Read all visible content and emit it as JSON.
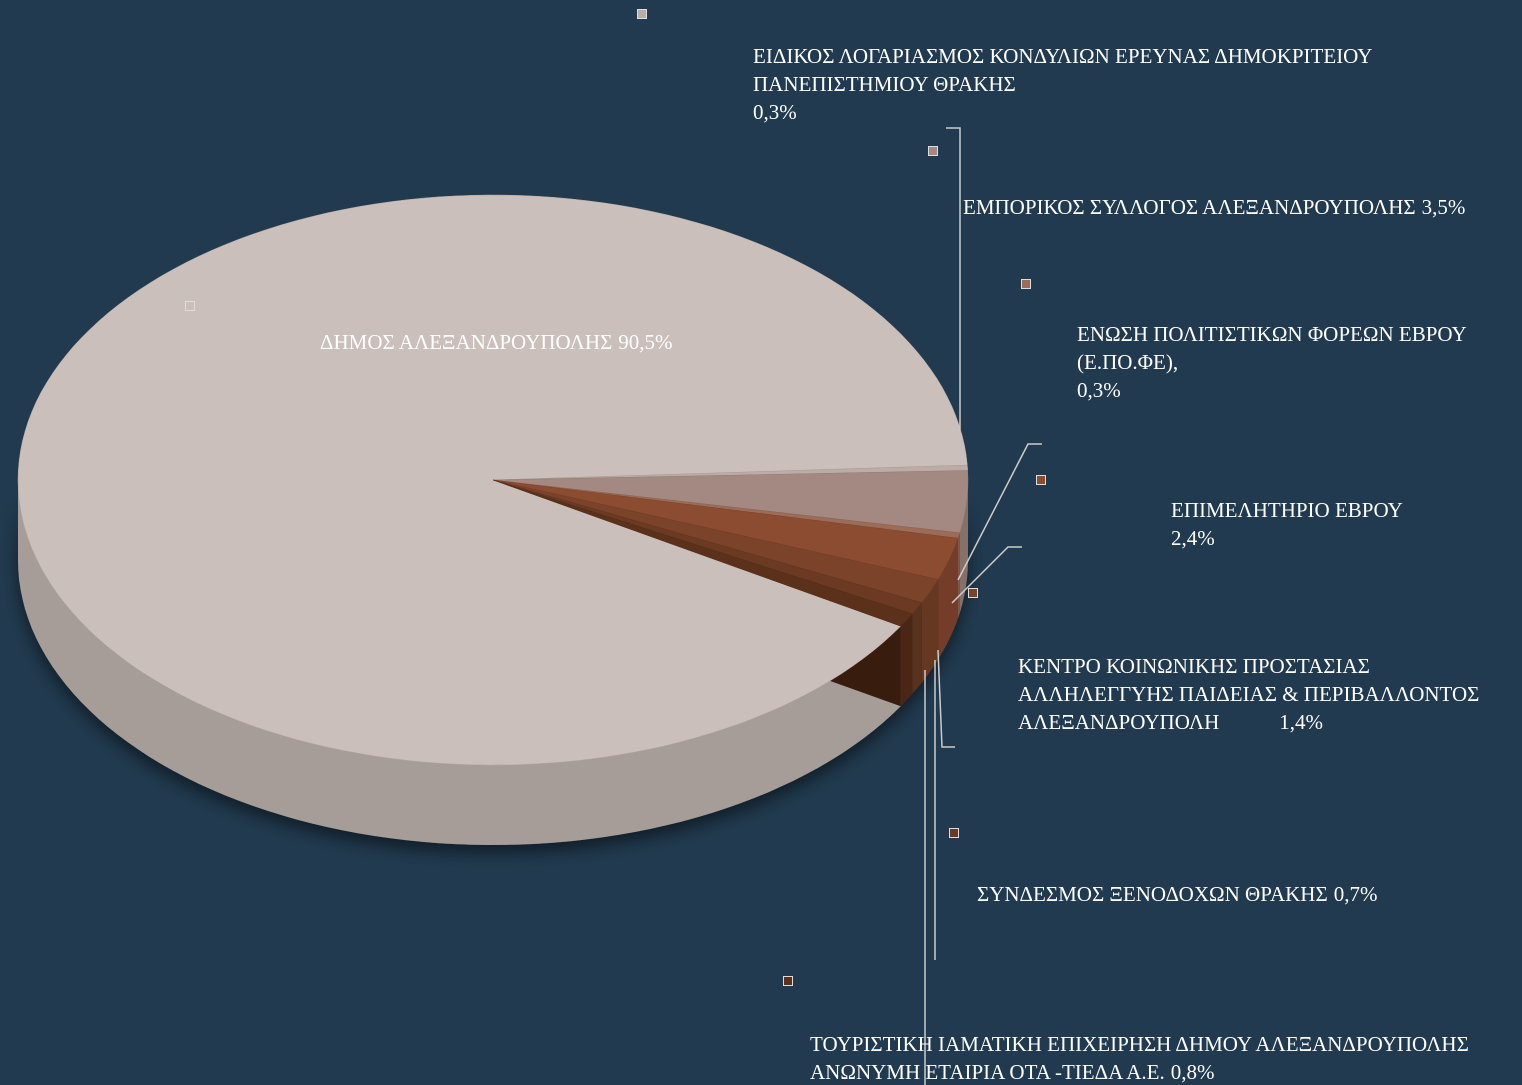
{
  "chart_data": {
    "type": "pie",
    "categories": [
      "ΔΗΜΟΣ ΑΛΕΞΑΝΔΡΟΥΠΟΛΗΣ",
      "ΕΙΔΙΚΟΣ ΛΟΓΑΡΙΑΣΜΟΣ ΚΟΝΔΥΛΙΩΝ ΕΡΕΥΝΑΣ ΔΗΜΟΚΡΙΤΕΙΟΥ ΠΑΝΕΠΙΣΤΗΜΙΟΥ ΘΡΑΚΗΣ",
      "ΕΜΠΟΡΙΚΟΣ ΣΥΛΛΟΓΟΣ ΑΛΕΞΑΝΔΡΟΥΠΟΛΗΣ",
      "ΕΝΩΣΗ ΠΟΛΙΤΙΣΤΙΚΩΝ ΦΟΡΕΩΝ ΕΒΡΟΥ (Ε.ΠΟ.ΦΕ),",
      "ΕΠΙΜΕΛΗΤΗΡΙΟ ΕΒΡΟΥ",
      "ΚΕΝΤΡΟ ΚΟΙΝΩΝΙΚΗΣ ΠΡΟΣΤΑΣΙΑΣ ΑΛΛΗΛΕΓΓΥΗΣ ΠΑΙΔΕΙΑΣ & ΠΕΡΙΒΑΛΛΟΝΤΟΣ ΑΛΕΞΑΝΔΡΟΥΠΟΛΗ",
      "ΣΥΝΔΕΣΜΟΣ ΞΕΝΟΔΟΧΩΝ ΘΡΑΚΗΣ",
      "ΤΟΥΡΙΣΤΙΚΗ ΙΑΜΑΤΙΚΗ ΕΠΙΧΕΙΡΗΣΗ ΔΗΜΟΥ ΑΛΕΞΑΝΔΡΟΥΠΟΛΗΣ ΑΝΩΝΥΜΗ ΕΤΑΙΡΙΑ ΟΤΑ -ΤΙΕΔΑ Α.Ε."
    ],
    "values": [
      90.5,
      0.3,
      3.5,
      0.3,
      2.4,
      1.4,
      0.7,
      0.8
    ],
    "value_labels": [
      "90,5%",
      "0,3%",
      "3,5%",
      "0,3%",
      "2,4%",
      "1,4%",
      "0,7%",
      "0,8%"
    ],
    "colors": [
      "#cbbfbb",
      "#bcaca7",
      "#a48983",
      "#9c6c58",
      "#8c4c32",
      "#7c432b",
      "#6c3a22",
      "#5c311b"
    ]
  }
}
